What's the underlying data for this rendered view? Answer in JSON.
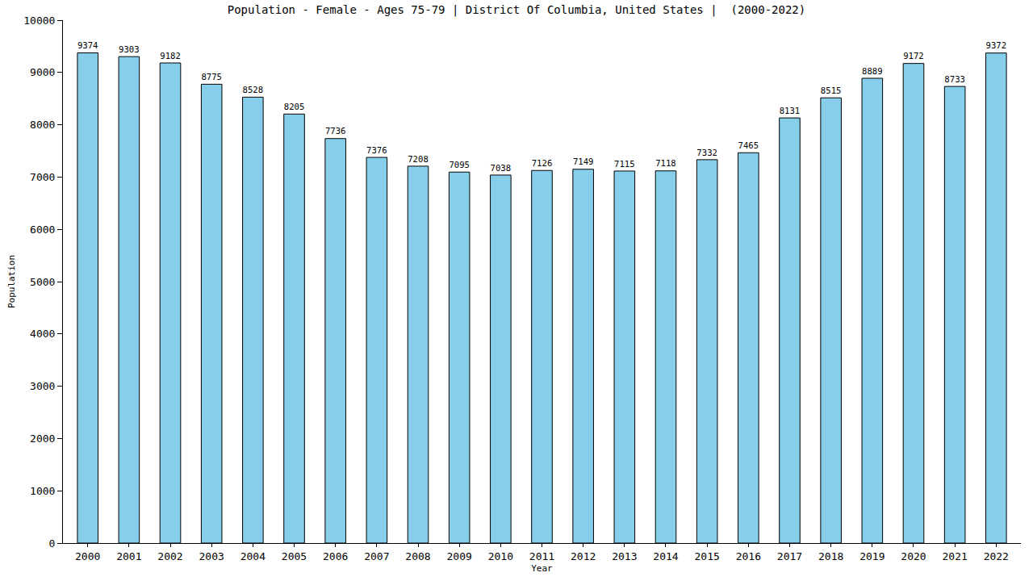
{
  "chart_data": {
    "type": "bar",
    "title": "Population - Female - Ages 75-79 | District Of Columbia, United States |  (2000-2022)",
    "x_label": "Year",
    "y_label": "Population",
    "categories": [
      "2000",
      "2001",
      "2002",
      "2003",
      "2004",
      "2005",
      "2006",
      "2007",
      "2008",
      "2009",
      "2010",
      "2011",
      "2012",
      "2013",
      "2014",
      "2015",
      "2016",
      "2017",
      "2018",
      "2019",
      "2020",
      "2021",
      "2022"
    ],
    "values": [
      9374,
      9303,
      9182,
      8775,
      8528,
      8205,
      7736,
      7376,
      7208,
      7095,
      7038,
      7126,
      7149,
      7115,
      7118,
      7332,
      7465,
      8131,
      8515,
      8889,
      9172,
      8733,
      9372
    ],
    "color": "#87ceeb",
    "ylim": [
      0,
      10000
    ],
    "yticks": [
      0,
      1000,
      2000,
      3000,
      4000,
      5000,
      6000,
      7000,
      8000,
      9000,
      10000
    ],
    "grid": false,
    "data_labels": true
  }
}
